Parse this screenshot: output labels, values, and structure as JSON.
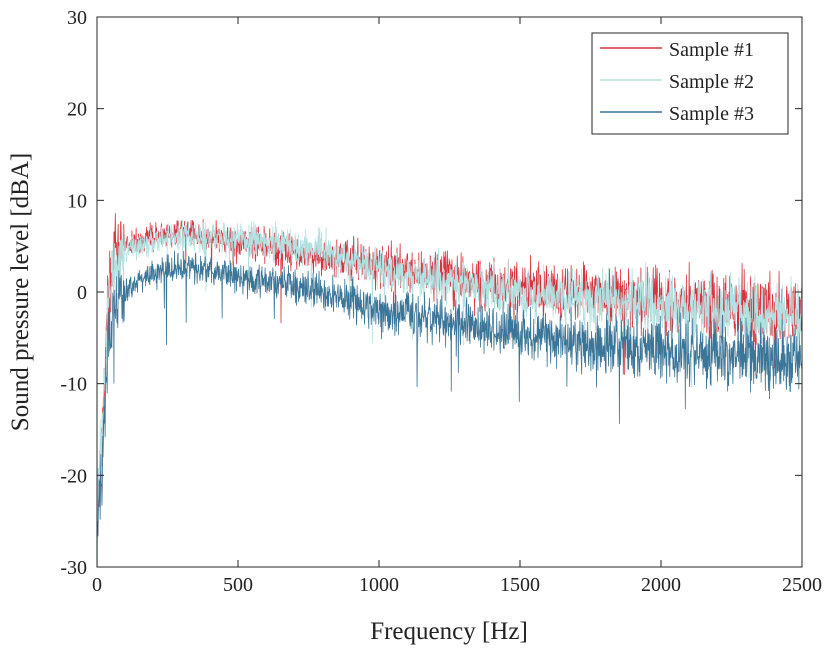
{
  "chart_data": {
    "type": "line",
    "title": "",
    "xlabel": "Frequency [Hz]",
    "ylabel": "Sound pressure level [dBA]",
    "xlim": [
      0,
      2500
    ],
    "ylim": [
      -30,
      30
    ],
    "xticks": [
      0,
      500,
      1000,
      1500,
      2000,
      2500
    ],
    "yticks": [
      -30,
      -20,
      -10,
      0,
      10,
      20,
      30
    ],
    "grid": false,
    "legend_position": "top-right",
    "series": [
      {
        "name": "Sample #1",
        "color": "#d9333f",
        "x": [
          0,
          20,
          40,
          60,
          80,
          100,
          150,
          200,
          250,
          300,
          350,
          400,
          450,
          500,
          600,
          700,
          800,
          900,
          1000,
          1100,
          1200,
          1300,
          1400,
          1500,
          1600,
          1700,
          1800,
          1900,
          2000,
          2100,
          2200,
          2300,
          2400,
          2500
        ],
        "values": [
          -25,
          -15,
          0,
          4,
          5,
          5,
          5.5,
          6,
          6.3,
          6.5,
          6.3,
          6,
          5.8,
          5.5,
          5,
          4.5,
          4,
          3.5,
          3,
          2.5,
          2,
          1.5,
          1,
          0.5,
          0,
          0,
          -0.5,
          -0.5,
          -1,
          -1,
          -1.5,
          -2,
          -2,
          -2.5
        ]
      },
      {
        "name": "Sample #2",
        "color": "#b3e0e0",
        "x": [
          0,
          20,
          40,
          60,
          80,
          100,
          150,
          200,
          250,
          300,
          350,
          400,
          450,
          500,
          600,
          700,
          800,
          900,
          1000,
          1100,
          1200,
          1300,
          1400,
          1500,
          1600,
          1700,
          1800,
          1900,
          2000,
          2100,
          2200,
          2300,
          2400,
          2500
        ],
        "values": [
          -24,
          -14,
          0,
          3,
          4,
          4.5,
          5,
          5.5,
          6,
          6.3,
          6.2,
          6,
          5.8,
          5.8,
          5.5,
          5,
          4.5,
          3.5,
          2.5,
          2,
          1.5,
          1,
          0.5,
          0,
          -0.5,
          -0.5,
          -1,
          -1,
          -1.5,
          -1.5,
          -2,
          -2,
          -2.5,
          -3
        ]
      },
      {
        "name": "Sample #3",
        "color": "#3b7597",
        "x": [
          0,
          20,
          40,
          60,
          80,
          100,
          150,
          200,
          250,
          300,
          350,
          400,
          450,
          500,
          600,
          700,
          800,
          900,
          1000,
          1100,
          1200,
          1300,
          1400,
          1500,
          1600,
          1700,
          1800,
          1900,
          2000,
          2100,
          2200,
          2300,
          2400,
          2500
        ],
        "values": [
          -28,
          -18,
          -5,
          -2,
          -1,
          0,
          1.5,
          2,
          2.5,
          2.5,
          2.5,
          2.3,
          2,
          1.5,
          1,
          0.5,
          0,
          -1,
          -2,
          -2.5,
          -3,
          -3.5,
          -4,
          -4.5,
          -5,
          -5.5,
          -6,
          -6,
          -6.5,
          -6.5,
          -7,
          -7,
          -7.5,
          -7.5
        ]
      }
    ]
  }
}
